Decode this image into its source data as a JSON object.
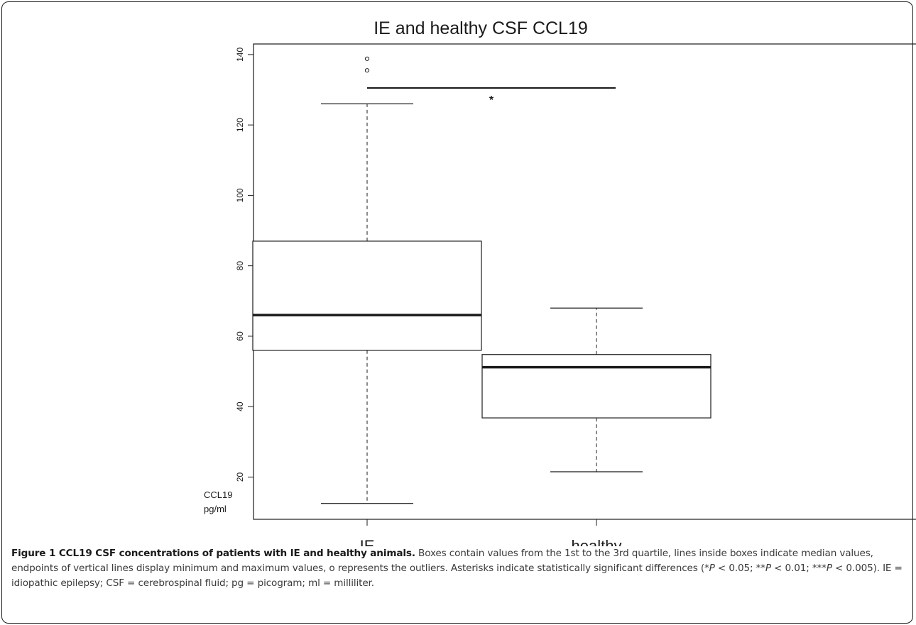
{
  "chart_data": {
    "type": "box",
    "title": "IE and healthy CSF CCL19",
    "ylabel_line1": "CCL19",
    "ylabel_line2": "pg/ml",
    "categories": [
      "IE",
      "healthy"
    ],
    "ylim": [
      8,
      143
    ],
    "yticks": [
      20,
      40,
      60,
      80,
      100,
      120,
      140
    ],
    "grid": false,
    "boxes": [
      {
        "name": "IE",
        "min": 12.5,
        "q1": 56,
        "median": 66,
        "q3": 87,
        "max": 126,
        "outliers": [
          135.5,
          138.8
        ]
      },
      {
        "name": "healthy",
        "min": 21.5,
        "q1": 36.8,
        "median": 51.2,
        "q3": 54.8,
        "max": 68
      }
    ],
    "significance": {
      "label": "*",
      "y": 130.5,
      "from": "IE",
      "to": "healthy"
    }
  },
  "caption": {
    "title": "Figure 1 CCL19 CSF concentrations of patients with IE and healthy animals.",
    "body_pre": " Boxes contain values from the 1st to the 3rd quartile, lines inside boxes indicate median values, endpoints of vertical lines display minimum and maximum values, o represents the outliers. Asterisks indicate statistically significant differences (",
    "sig1_a": "*",
    "sig1_p": "P",
    "sig1_b": " < 0.05; ",
    "sig2_a": "**",
    "sig2_p": "P",
    "sig2_b": " < 0.01; ",
    "sig3_a": "***",
    "sig3_p": "P",
    "sig3_b": " < 0.005). IE = idiopathic epilepsy; CSF = cerebrospinal fluid; pg = picogram; ml = milliliter."
  }
}
